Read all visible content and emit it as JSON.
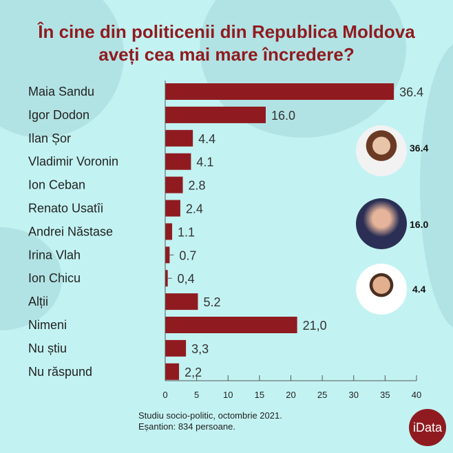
{
  "title_lines": [
    "În cine din politicenii din Republica Moldova",
    "aveți cea mai mare încredere?"
  ],
  "chart_data": {
    "type": "bar",
    "orientation": "horizontal",
    "categories": [
      "Maia Sandu",
      "Igor Dodon",
      "Ilan Șor",
      "Vladimir Voronin",
      "Ion Ceban",
      "Renato Usatîi",
      "Andrei Năstase",
      "Irina Vlah",
      "Ion Chicu",
      "Alții",
      "Nimeni",
      "Nu știu",
      "Nu răspund"
    ],
    "values": [
      36.4,
      16.0,
      4.4,
      4.1,
      2.8,
      2.4,
      1.1,
      0.7,
      0.4,
      5.2,
      21.0,
      3.3,
      2.2
    ],
    "data_labels": [
      "36.4",
      "16.0",
      "4.4",
      "4.1",
      "2.8",
      "2.4",
      "1.1",
      "0.7",
      "0,4",
      "5.2",
      "21,0",
      "3,3",
      "2,2"
    ],
    "xlim": [
      0,
      40
    ],
    "xticks": [
      "0",
      "5",
      "10",
      "15",
      "20",
      "25",
      "30",
      "35",
      "40"
    ],
    "grid": false,
    "bar_color": "#8f1b20"
  },
  "highlights": [
    {
      "person": "Maia Sandu",
      "label": "36.4"
    },
    {
      "person": "Igor Dodon",
      "label": "16.0"
    },
    {
      "person": "Ilan Șor",
      "label": "4.4"
    }
  ],
  "notes": [
    "Studiu socio-politic, octombrie 2021.",
    "Eșantion: 834 persoane."
  ],
  "logo": "iData"
}
